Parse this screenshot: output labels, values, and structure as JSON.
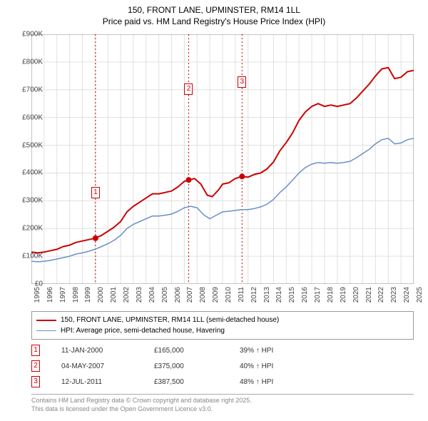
{
  "title_line1": "150, FRONT LANE, UPMINSTER, RM14 1LL",
  "title_line2": "Price paid vs. HM Land Registry's House Price Index (HPI)",
  "chart": {
    "type": "line",
    "background_color": "#ffffff",
    "grid_color": "#e0e0e0",
    "axis_color": "#888888",
    "x_start": 1995,
    "x_end": 2025,
    "x_tick_step": 1,
    "y_min": 0,
    "y_max": 900000,
    "y_tick_step": 100000,
    "y_tick_labels": [
      "£0",
      "£100K",
      "£200K",
      "£300K",
      "£400K",
      "£500K",
      "£600K",
      "£700K",
      "£800K",
      "£900K"
    ],
    "label_fontsize": 10,
    "series": [
      {
        "name": "150, FRONT LANE, UPMINSTER, RM14 1LL (semi-detached house)",
        "color": "#cc0000",
        "line_width": 2,
        "data": [
          [
            1995.0,
            115000
          ],
          [
            1995.5,
            112000
          ],
          [
            1996.0,
            115000
          ],
          [
            1996.5,
            120000
          ],
          [
            1997.0,
            125000
          ],
          [
            1997.5,
            135000
          ],
          [
            1998.0,
            140000
          ],
          [
            1998.5,
            150000
          ],
          [
            1999.0,
            155000
          ],
          [
            1999.5,
            160000
          ],
          [
            2000.0,
            165000
          ],
          [
            2000.5,
            175000
          ],
          [
            2001.0,
            190000
          ],
          [
            2001.5,
            205000
          ],
          [
            2002.0,
            225000
          ],
          [
            2002.5,
            260000
          ],
          [
            2003.0,
            280000
          ],
          [
            2003.5,
            295000
          ],
          [
            2004.0,
            310000
          ],
          [
            2004.5,
            325000
          ],
          [
            2005.0,
            325000
          ],
          [
            2005.5,
            330000
          ],
          [
            2006.0,
            335000
          ],
          [
            2006.5,
            350000
          ],
          [
            2007.0,
            370000
          ],
          [
            2007.4,
            375000
          ],
          [
            2007.8,
            380000
          ],
          [
            2008.3,
            360000
          ],
          [
            2008.8,
            320000
          ],
          [
            2009.2,
            315000
          ],
          [
            2009.7,
            340000
          ],
          [
            2010.0,
            360000
          ],
          [
            2010.5,
            365000
          ],
          [
            2011.0,
            380000
          ],
          [
            2011.5,
            387500
          ],
          [
            2012.0,
            385000
          ],
          [
            2012.5,
            395000
          ],
          [
            2013.0,
            400000
          ],
          [
            2013.5,
            415000
          ],
          [
            2014.0,
            440000
          ],
          [
            2014.5,
            480000
          ],
          [
            2015.0,
            510000
          ],
          [
            2015.5,
            545000
          ],
          [
            2016.0,
            590000
          ],
          [
            2016.5,
            620000
          ],
          [
            2017.0,
            640000
          ],
          [
            2017.5,
            650000
          ],
          [
            2018.0,
            640000
          ],
          [
            2018.5,
            645000
          ],
          [
            2019.0,
            640000
          ],
          [
            2019.5,
            645000
          ],
          [
            2020.0,
            650000
          ],
          [
            2020.5,
            670000
          ],
          [
            2021.0,
            695000
          ],
          [
            2021.5,
            720000
          ],
          [
            2022.0,
            750000
          ],
          [
            2022.5,
            775000
          ],
          [
            2023.0,
            780000
          ],
          [
            2023.5,
            740000
          ],
          [
            2024.0,
            745000
          ],
          [
            2024.5,
            765000
          ],
          [
            2025.0,
            770000
          ]
        ]
      },
      {
        "name": "HPI: Average price, semi-detached house, Havering",
        "color": "#6a8fc9",
        "line_width": 1.5,
        "data": [
          [
            1995.0,
            82000
          ],
          [
            1995.5,
            80000
          ],
          [
            1996.0,
            82000
          ],
          [
            1996.5,
            85000
          ],
          [
            1997.0,
            90000
          ],
          [
            1997.5,
            95000
          ],
          [
            1998.0,
            100000
          ],
          [
            1998.5,
            108000
          ],
          [
            1999.0,
            112000
          ],
          [
            1999.5,
            118000
          ],
          [
            2000.0,
            125000
          ],
          [
            2000.5,
            135000
          ],
          [
            2001.0,
            145000
          ],
          [
            2001.5,
            158000
          ],
          [
            2002.0,
            175000
          ],
          [
            2002.5,
            200000
          ],
          [
            2003.0,
            215000
          ],
          [
            2003.5,
            225000
          ],
          [
            2004.0,
            235000
          ],
          [
            2004.5,
            245000
          ],
          [
            2005.0,
            245000
          ],
          [
            2005.5,
            248000
          ],
          [
            2006.0,
            252000
          ],
          [
            2006.5,
            262000
          ],
          [
            2007.0,
            275000
          ],
          [
            2007.5,
            280000
          ],
          [
            2008.0,
            275000
          ],
          [
            2008.5,
            250000
          ],
          [
            2009.0,
            235000
          ],
          [
            2009.5,
            248000
          ],
          [
            2010.0,
            260000
          ],
          [
            2010.5,
            262000
          ],
          [
            2011.0,
            265000
          ],
          [
            2011.5,
            268000
          ],
          [
            2012.0,
            268000
          ],
          [
            2012.5,
            272000
          ],
          [
            2013.0,
            278000
          ],
          [
            2013.5,
            288000
          ],
          [
            2014.0,
            305000
          ],
          [
            2014.5,
            330000
          ],
          [
            2015.0,
            350000
          ],
          [
            2015.5,
            375000
          ],
          [
            2016.0,
            400000
          ],
          [
            2016.5,
            420000
          ],
          [
            2017.0,
            432000
          ],
          [
            2017.5,
            438000
          ],
          [
            2018.0,
            435000
          ],
          [
            2018.5,
            438000
          ],
          [
            2019.0,
            435000
          ],
          [
            2019.5,
            438000
          ],
          [
            2020.0,
            442000
          ],
          [
            2020.5,
            455000
          ],
          [
            2021.0,
            470000
          ],
          [
            2021.5,
            485000
          ],
          [
            2022.0,
            505000
          ],
          [
            2022.5,
            520000
          ],
          [
            2023.0,
            525000
          ],
          [
            2023.5,
            505000
          ],
          [
            2024.0,
            508000
          ],
          [
            2024.5,
            520000
          ],
          [
            2025.0,
            525000
          ]
        ]
      }
    ],
    "markers": [
      {
        "n": "1",
        "x": 2000.03,
        "y": 165000,
        "label_y_offset": -72,
        "color": "#cc0000"
      },
      {
        "n": "2",
        "x": 2007.34,
        "y": 375000,
        "label_y_offset": -135,
        "color": "#cc0000"
      },
      {
        "n": "3",
        "x": 2011.53,
        "y": 387500,
        "label_y_offset": -140,
        "color": "#cc0000"
      }
    ]
  },
  "legend": {
    "border_color": "#999999",
    "items": [
      {
        "label": "150, FRONT LANE, UPMINSTER, RM14 1LL (semi-detached house)",
        "color": "#cc0000",
        "thick": 2
      },
      {
        "label": "HPI: Average price, semi-detached house, Havering",
        "color": "#6a8fc9",
        "thick": 1.5
      }
    ]
  },
  "marker_rows": [
    {
      "n": "1",
      "color": "#cc0000",
      "date": "11-JAN-2000",
      "price": "£165,000",
      "pct": "39% ↑ HPI"
    },
    {
      "n": "2",
      "color": "#cc0000",
      "date": "04-MAY-2007",
      "price": "£375,000",
      "pct": "40% ↑ HPI"
    },
    {
      "n": "3",
      "color": "#cc0000",
      "date": "12-JUL-2011",
      "price": "£387,500",
      "pct": "48% ↑ HPI"
    }
  ],
  "footer_line1": "Contains HM Land Registry data © Crown copyright and database right 2025.",
  "footer_line2": "This data is licensed under the Open Government Licence v3.0."
}
